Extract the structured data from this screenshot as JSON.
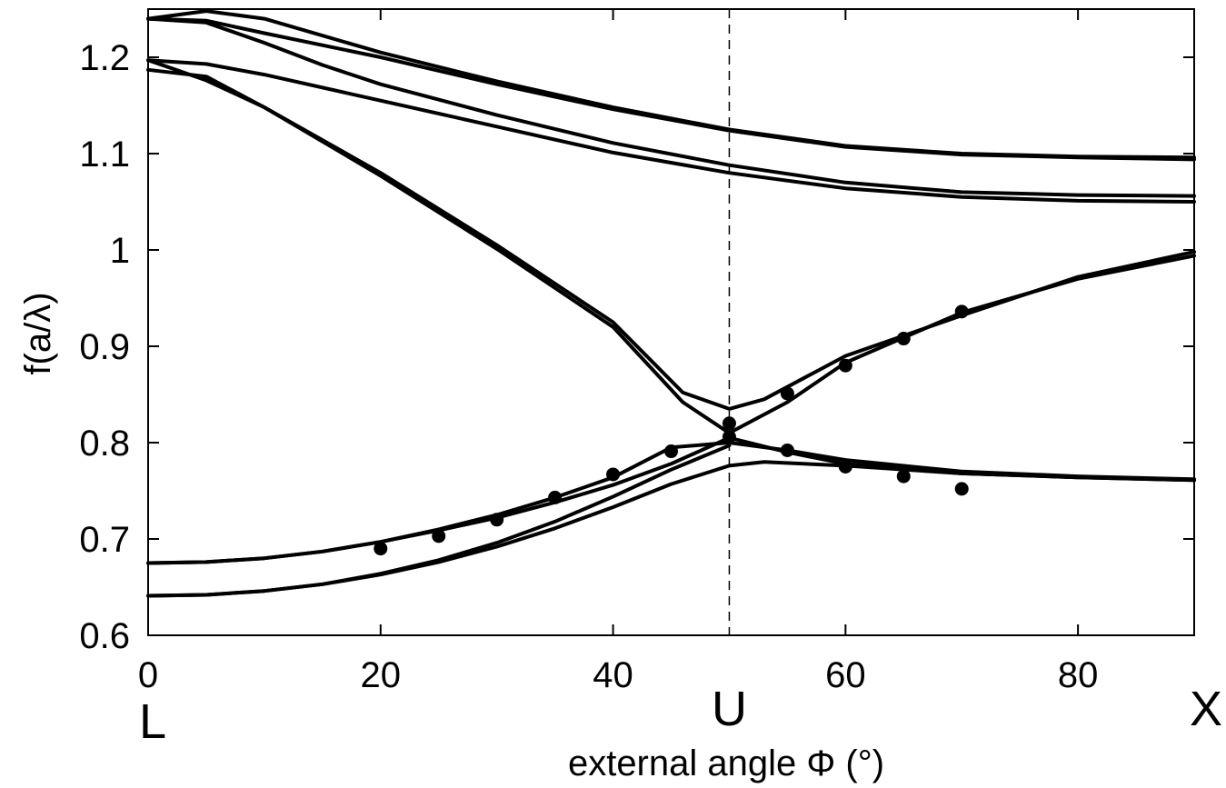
{
  "chart_data": {
    "type": "line",
    "title": "",
    "xlabel": "external angle Φ (°)",
    "ylabel": "f(a/λ)",
    "xlim": [
      0,
      90
    ],
    "ylim": [
      0.6,
      1.25
    ],
    "xticks": [
      0,
      20,
      40,
      60,
      80
    ],
    "yticks": [
      0.6,
      0.7,
      0.8,
      0.9,
      1.0,
      1.1,
      1.2
    ],
    "xtick_labels": [
      "0",
      "20",
      "40",
      "60",
      "80"
    ],
    "ytick_labels": [
      "0.6",
      "0.7",
      "0.8",
      "0.9",
      "1",
      "1.1",
      "1.2"
    ],
    "grid": false,
    "legend": "none",
    "colors": {
      "line": "#000000",
      "marker": "#000000",
      "guide": "#000000"
    },
    "special_points": [
      {
        "label": "L",
        "x": 0
      },
      {
        "label": "U",
        "x": 50
      },
      {
        "label": "X",
        "x": 90
      }
    ],
    "reference_line": {
      "x": 50,
      "style": "dashed"
    },
    "series": [
      {
        "x": [
          0,
          5,
          10,
          20,
          30,
          40,
          50,
          60,
          70,
          80,
          90
        ],
        "y": [
          1.24,
          1.248,
          1.24,
          1.205,
          1.175,
          1.148,
          1.125,
          1.108,
          1.1,
          1.097,
          1.096
        ]
      },
      {
        "x": [
          0,
          5,
          10,
          20,
          30,
          40,
          50,
          60,
          70,
          80,
          90
        ],
        "y": [
          1.24,
          1.238,
          1.225,
          1.2,
          1.172,
          1.146,
          1.124,
          1.107,
          1.099,
          1.096,
          1.094
        ]
      },
      {
        "x": [
          0,
          5,
          10,
          15,
          20,
          30,
          40,
          50,
          60,
          70,
          80,
          90
        ],
        "y": [
          1.24,
          1.236,
          1.215,
          1.192,
          1.172,
          1.14,
          1.111,
          1.088,
          1.07,
          1.06,
          1.057,
          1.056
        ]
      },
      {
        "x": [
          0,
          5,
          10,
          20,
          30,
          40,
          50,
          60,
          70,
          80,
          90
        ],
        "y": [
          1.197,
          1.193,
          1.182,
          1.155,
          1.128,
          1.101,
          1.08,
          1.064,
          1.055,
          1.051,
          1.05
        ]
      },
      {
        "x": [
          0,
          5,
          10,
          20,
          30,
          40,
          46,
          50,
          53,
          60,
          70,
          80,
          90
        ],
        "y": [
          1.187,
          1.18,
          1.148,
          1.08,
          1.005,
          0.925,
          0.852,
          0.835,
          0.845,
          0.89,
          0.932,
          0.972,
          0.998
        ]
      },
      {
        "x": [
          0,
          5,
          10,
          20,
          30,
          40,
          46,
          50,
          55,
          60,
          70,
          80,
          90
        ],
        "y": [
          1.197,
          1.176,
          1.148,
          1.077,
          1.001,
          0.92,
          0.842,
          0.81,
          0.842,
          0.883,
          0.935,
          0.97,
          0.994
        ]
      },
      {
        "x": [
          0,
          5,
          10,
          15,
          20,
          25,
          30,
          35,
          40,
          45,
          50,
          55,
          60,
          70,
          80,
          90
        ],
        "y": [
          0.675,
          0.676,
          0.68,
          0.687,
          0.697,
          0.71,
          0.725,
          0.743,
          0.764,
          0.795,
          0.8,
          0.792,
          0.782,
          0.77,
          0.765,
          0.762
        ]
      },
      {
        "x": [
          0,
          5,
          10,
          15,
          20,
          25,
          30,
          35,
          40,
          45,
          50,
          55,
          60,
          70,
          80,
          90
        ],
        "y": [
          0.675,
          0.676,
          0.68,
          0.687,
          0.697,
          0.709,
          0.722,
          0.738,
          0.756,
          0.778,
          0.805,
          0.79,
          0.778,
          0.768,
          0.764,
          0.761
        ]
      },
      {
        "x": [
          0,
          5,
          10,
          15,
          20,
          25,
          30,
          35,
          40,
          45,
          50,
          53,
          60,
          70,
          80,
          90
        ],
        "y": [
          0.641,
          0.642,
          0.646,
          0.653,
          0.663,
          0.676,
          0.692,
          0.711,
          0.733,
          0.757,
          0.776,
          0.78,
          0.776,
          0.768,
          0.764,
          0.761
        ]
      },
      {
        "x": [
          0,
          5,
          10,
          15,
          20,
          25,
          30,
          35,
          40,
          45,
          50
        ],
        "y": [
          0.641,
          0.642,
          0.646,
          0.653,
          0.664,
          0.678,
          0.696,
          0.718,
          0.744,
          0.772,
          0.797
        ]
      }
    ],
    "markers": [
      {
        "x": 20,
        "y": 0.69
      },
      {
        "x": 25,
        "y": 0.703
      },
      {
        "x": 30,
        "y": 0.72
      },
      {
        "x": 35,
        "y": 0.743
      },
      {
        "x": 40,
        "y": 0.767
      },
      {
        "x": 45,
        "y": 0.791
      },
      {
        "x": 50,
        "y": 0.82
      },
      {
        "x": 50,
        "y": 0.806
      },
      {
        "x": 55,
        "y": 0.851
      },
      {
        "x": 55,
        "y": 0.792
      },
      {
        "x": 60,
        "y": 0.88
      },
      {
        "x": 60,
        "y": 0.775
      },
      {
        "x": 65,
        "y": 0.908
      },
      {
        "x": 65,
        "y": 0.765
      },
      {
        "x": 70,
        "y": 0.936
      },
      {
        "x": 70,
        "y": 0.752
      }
    ]
  }
}
